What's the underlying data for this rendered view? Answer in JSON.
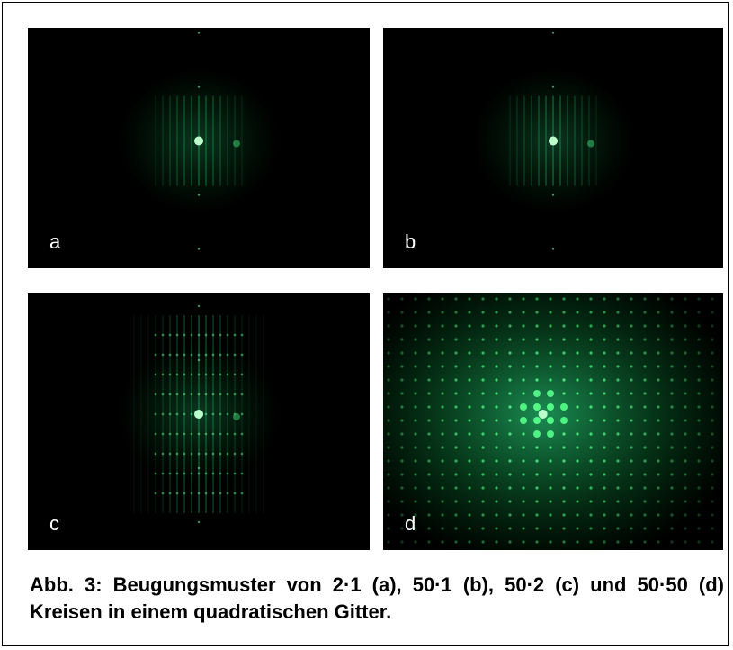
{
  "figure": {
    "panels": [
      {
        "label": "a"
      },
      {
        "label": "b"
      },
      {
        "label": "c"
      },
      {
        "label": "d"
      }
    ],
    "caption": "Abb. 3: Beugungsmuster von 2·1 (a), 50·1 (b), 50·2 (c) und 50·50 (d) Kreisen in einem quadratischen Gitter."
  }
}
